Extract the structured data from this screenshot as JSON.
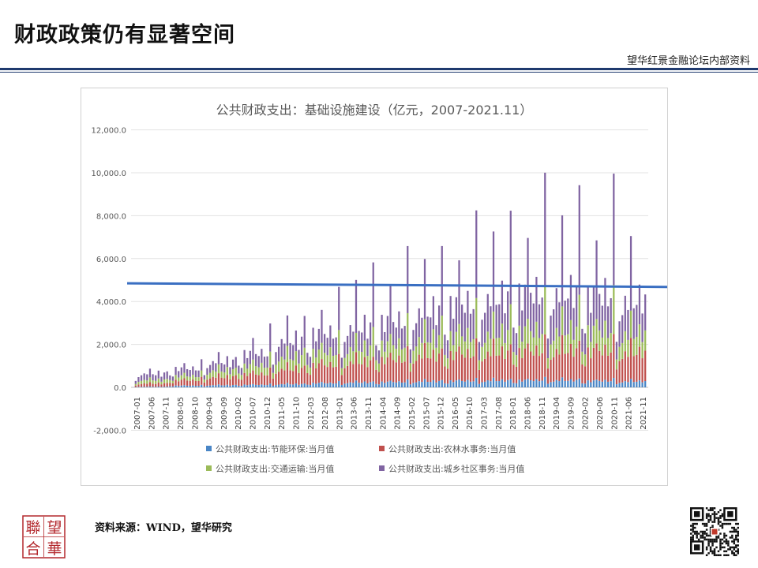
{
  "header": {
    "title": "财政政策仍有显著空间",
    "tag": "望华红景金融论坛内部资料"
  },
  "footer": {
    "source": "资料来源：WIND，望华研究",
    "logo_text": [
      "聯",
      "望",
      "合",
      "華"
    ]
  },
  "colors": {
    "rule": "#1f3a6e",
    "series_blue": "#4a86c6",
    "series_red": "#c0504d",
    "series_green": "#9bbb59",
    "series_purple": "#8064a2",
    "reference_line": "#3a6fc2",
    "logo": "#b3282d"
  },
  "chart_data": {
    "type": "bar",
    "stacked": true,
    "title": "公共财政支出：基础设施建设（亿元，2007-2021.11）",
    "x_tick_labels": [
      "2007-01",
      "2007-06",
      "2007-11",
      "2008-05",
      "2008-10",
      "2009-04",
      "2009-09",
      "2010-02",
      "2010-07",
      "2010-12",
      "2011-05",
      "2011-10",
      "2012-03",
      "2012-08",
      "2013-01",
      "2013-06",
      "2013-11",
      "2014-04",
      "2014-09",
      "2015-02",
      "2015-07",
      "2015-12",
      "2016-05",
      "2016-10",
      "2017-03",
      "2017-08",
      "2018-01",
      "2018-06",
      "2018-11",
      "2019-04",
      "2019-09",
      "2020-02",
      "2020-06",
      "2020-11",
      "2021-06",
      "2021-11"
    ],
    "y_ticks": [
      "12,000.0",
      "10,000.0",
      "8,000.0",
      "6,000.0",
      "4,000.0",
      "2,000.0",
      "0.0",
      "-2,000.0"
    ],
    "ylim": [
      -2000,
      12000
    ],
    "grid": true,
    "legend_position": "bottom",
    "series": [
      {
        "name": "公共财政支出:节能环保:当月值"
      },
      {
        "name": "公共财政支出:农林水事务:当月值"
      },
      {
        "name": "公共财政支出:交通运输:当月值"
      },
      {
        "name": "公共财政支出:城乡社区事务:当月值"
      }
    ],
    "reference_line": {
      "start": 4850,
      "end": 4680
    },
    "yearly_profile": [
      {
        "year": 2007,
        "energy": 30,
        "agri": 150,
        "transport": 160,
        "urban": 300,
        "spike": 0
      },
      {
        "year": 2008,
        "energy": 80,
        "agri": 250,
        "transport": 200,
        "urban": 350,
        "spike": 0
      },
      {
        "year": 2009,
        "energy": 100,
        "agri": 380,
        "transport": 300,
        "urban": 420,
        "spike": 0
      },
      {
        "year": 2010,
        "energy": 120,
        "agri": 500,
        "transport": 400,
        "urban": 580,
        "spike": 600
      },
      {
        "year": 2011,
        "energy": 150,
        "agri": 700,
        "transport": 550,
        "urban": 800,
        "spike": 700
      },
      {
        "year": 2012,
        "energy": 200,
        "agri": 850,
        "transport": 600,
        "urban": 900,
        "spike": 900
      },
      {
        "year": 2013,
        "energy": 230,
        "agri": 950,
        "transport": 650,
        "urban": 1000,
        "spike": 2400
      },
      {
        "year": 2014,
        "energy": 250,
        "agri": 1050,
        "transport": 700,
        "urban": 1100,
        "spike": 2000
      },
      {
        "year": 2015,
        "energy": 280,
        "agri": 1200,
        "transport": 800,
        "urban": 1300,
        "spike": 2200
      },
      {
        "year": 2016,
        "energy": 300,
        "agri": 1250,
        "transport": 850,
        "urban": 1500,
        "spike": 2500
      },
      {
        "year": 2017,
        "energy": 320,
        "agri": 1300,
        "transport": 900,
        "urban": 1700,
        "spike": 3000
      },
      {
        "year": 2018,
        "energy": 330,
        "agri": 1350,
        "transport": 950,
        "urban": 1800,
        "spike": 3500
      },
      {
        "year": 2019,
        "energy": 330,
        "agri": 1400,
        "transport": 950,
        "urban": 1800,
        "spike": 3800
      },
      {
        "year": 2020,
        "energy": 300,
        "agri": 1400,
        "transport": 950,
        "urban": 1700,
        "spike": 3600
      },
      {
        "year": 2021,
        "energy": 280,
        "agri": 1350,
        "transport": 900,
        "urban": 1600,
        "spike": 2700
      }
    ]
  }
}
